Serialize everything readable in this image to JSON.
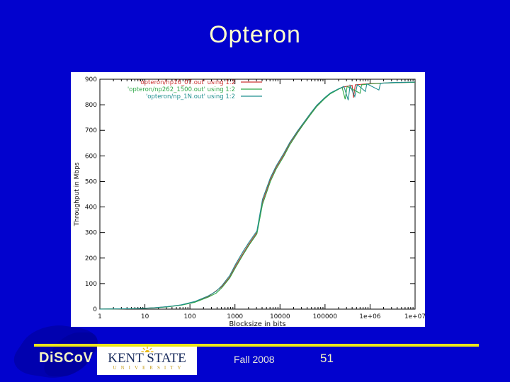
{
  "slide": {
    "title": "Opteron",
    "background_color": "#0202CE",
    "accent_line_color": "#EDE619"
  },
  "footer": {
    "brand": "DiSCoV",
    "university_logo": {
      "name": "KENT STATE",
      "subtitle": "UNIVERSITY",
      "sun_color": "#E8B818",
      "text_color": "#1B2D5E"
    },
    "semester": "Fall 2008",
    "page_number": "51"
  },
  "chart_data": {
    "type": "line",
    "title": "",
    "xlabel": "Blocksize in bits",
    "ylabel": "Throughput in Mbps",
    "x_scale": "log",
    "xlim": [
      1,
      10000000
    ],
    "ylim": [
      0,
      900
    ],
    "grid": false,
    "legend_position": "top-left",
    "plot_bg": "#ffffff",
    "axis_color": "#000000",
    "x_tick_values": [
      1,
      10,
      100,
      1000,
      10000,
      100000,
      1000000,
      10000000
    ],
    "x_tick_labels": [
      "1",
      "10",
      "100",
      "1000",
      "10000",
      "100000",
      "1e+06",
      "1e+07"
    ],
    "y_tick_values": [
      0,
      100,
      200,
      300,
      400,
      500,
      600,
      700,
      800,
      900
    ],
    "series": [
      {
        "name": "'opteron/np16_07.out' using 1:2",
        "color": "#CC3333",
        "points": [
          [
            1,
            0.35
          ],
          [
            2,
            0.75
          ],
          [
            4,
            1.5
          ],
          [
            8,
            2.8
          ],
          [
            16,
            5.2
          ],
          [
            32,
            9.5
          ],
          [
            64,
            16
          ],
          [
            128,
            28
          ],
          [
            256,
            49
          ],
          [
            512,
            88
          ],
          [
            768,
            126
          ],
          [
            1024,
            168
          ],
          [
            1536,
            220
          ],
          [
            2048,
            255
          ],
          [
            3072,
            300
          ],
          [
            4096,
            420
          ],
          [
            6144,
            508
          ],
          [
            8192,
            554
          ],
          [
            12288,
            606
          ],
          [
            16384,
            648
          ],
          [
            24576,
            694
          ],
          [
            32768,
            725
          ],
          [
            49152,
            767
          ],
          [
            65536,
            795
          ],
          [
            98304,
            826
          ],
          [
            131072,
            844
          ],
          [
            196608,
            861
          ],
          [
            262144,
            870
          ],
          [
            400000,
            876
          ],
          [
            430000,
            828
          ],
          [
            470000,
            878
          ],
          [
            1048576,
            883
          ],
          [
            3000000,
            886
          ],
          [
            10000000,
            888
          ]
        ]
      },
      {
        "name": "'opteron/np262_1500.out' using 1:2",
        "color": "#2FA849",
        "points": [
          [
            1,
            0.3
          ],
          [
            2,
            0.7
          ],
          [
            4,
            1.4
          ],
          [
            8,
            2.7
          ],
          [
            16,
            5
          ],
          [
            32,
            9
          ],
          [
            64,
            15.5
          ],
          [
            128,
            27
          ],
          [
            256,
            47
          ],
          [
            384,
            63
          ],
          [
            512,
            84
          ],
          [
            768,
            122
          ],
          [
            1024,
            162
          ],
          [
            1536,
            215
          ],
          [
            2048,
            250
          ],
          [
            3072,
            295
          ],
          [
            4096,
            410
          ],
          [
            6144,
            500
          ],
          [
            8192,
            548
          ],
          [
            12288,
            600
          ],
          [
            16384,
            642
          ],
          [
            24576,
            690
          ],
          [
            32768,
            722
          ],
          [
            49152,
            764
          ],
          [
            65536,
            793
          ],
          [
            98304,
            824
          ],
          [
            131072,
            843
          ],
          [
            196608,
            860
          ],
          [
            240000,
            868
          ],
          [
            280000,
            822
          ],
          [
            310000,
            872
          ],
          [
            600000,
            845
          ],
          [
            650000,
            878
          ],
          [
            1048576,
            882
          ],
          [
            2000000,
            885
          ],
          [
            5000000,
            887
          ],
          [
            10000000,
            888
          ]
        ]
      },
      {
        "name": "'opteron/np_1N.out' using 1:2",
        "color": "#1F8F8F",
        "points": [
          [
            1,
            0.4
          ],
          [
            2,
            0.8
          ],
          [
            4,
            1.6
          ],
          [
            8,
            3
          ],
          [
            16,
            5.5
          ],
          [
            32,
            10
          ],
          [
            64,
            17
          ],
          [
            128,
            30
          ],
          [
            256,
            52
          ],
          [
            384,
            70
          ],
          [
            512,
            92
          ],
          [
            768,
            132
          ],
          [
            1024,
            175
          ],
          [
            1536,
            228
          ],
          [
            2048,
            262
          ],
          [
            3072,
            306
          ],
          [
            4096,
            430
          ],
          [
            6144,
            515
          ],
          [
            8192,
            560
          ],
          [
            12288,
            612
          ],
          [
            16384,
            652
          ],
          [
            24576,
            698
          ],
          [
            32768,
            728
          ],
          [
            49152,
            770
          ],
          [
            65536,
            798
          ],
          [
            98304,
            828
          ],
          [
            131072,
            846
          ],
          [
            196608,
            862
          ],
          [
            262144,
            872
          ],
          [
            327680,
            818
          ],
          [
            360000,
            875
          ],
          [
            458752,
            832
          ],
          [
            520000,
            879
          ],
          [
            786432,
            852
          ],
          [
            850000,
            882
          ],
          [
            1572864,
            858
          ],
          [
            1700000,
            884
          ],
          [
            3000000,
            887
          ],
          [
            6000000,
            888
          ],
          [
            10000000,
            889
          ]
        ]
      }
    ]
  }
}
